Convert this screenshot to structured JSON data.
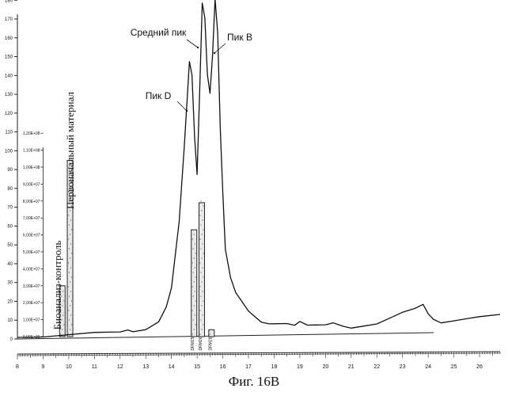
{
  "caption": "Фиг. 16B",
  "chart_data": {
    "type": "line",
    "title": "",
    "xlabel": "",
    "ylabel": "",
    "xlim": [
      8,
      26.8
    ],
    "ylim": [
      0,
      170
    ],
    "x_ticks": [
      "8",
      "9",
      "10",
      "11",
      "12",
      "13",
      "14",
      "15",
      "16",
      "17",
      "18",
      "19",
      "20",
      "21",
      "22",
      "23",
      "24",
      "25",
      "26"
    ],
    "y_ticks": [
      "0",
      "10",
      "20",
      "30",
      "40",
      "50",
      "60",
      "70",
      "80",
      "90",
      "100",
      "110",
      "120",
      "130",
      "140",
      "150",
      "160",
      "170",
      "180"
    ],
    "series": [
      {
        "name": "",
        "x": [
          8.0,
          9.0,
          10.0,
          11.0,
          11.5,
          12.0,
          12.3,
          12.5,
          13.0,
          13.5,
          13.8,
          14.0,
          14.3,
          14.5,
          14.7,
          14.8,
          14.9,
          15.0,
          15.1,
          15.2,
          15.3,
          15.4,
          15.5,
          15.6,
          15.7,
          15.8,
          15.9,
          16.0,
          16.1,
          16.3,
          16.5,
          17.0,
          17.5,
          17.8,
          18.0,
          18.5,
          18.8,
          19.0,
          19.3,
          19.6,
          20.0,
          20.3,
          20.7,
          21.0,
          21.5,
          22.0,
          22.5,
          23.0,
          23.5,
          23.8,
          24.0,
          24.2,
          24.5,
          25.0,
          25.5,
          26.0,
          26.8
        ],
        "y": [
          0,
          0,
          1,
          2,
          2,
          2,
          3,
          2,
          3,
          7,
          15,
          25,
          60,
          100,
          145,
          138,
          105,
          85,
          130,
          176,
          168,
          138,
          128,
          148,
          178,
          160,
          110,
          75,
          45,
          30,
          22,
          12,
          6,
          5,
          5,
          5,
          4,
          6,
          4,
          4,
          4,
          5,
          3,
          2,
          3,
          4,
          7,
          10,
          12,
          14,
          9,
          6,
          4,
          5,
          6,
          7,
          8
        ]
      }
    ],
    "bars": [
      {
        "x": 9.75,
        "value": 30000000
      },
      {
        "x": 10.05,
        "value": 104000000
      },
      {
        "x": 14.88,
        "value": 63000000
      },
      {
        "x": 15.18,
        "value": 79000000
      },
      {
        "x": 15.56,
        "value": 4000000
      }
    ],
    "bar_axis": {
      "range": [
        0,
        200000000
      ],
      "ticks": [
        "0,00E+00",
        "1,00E+07",
        "2,00E+07",
        "3,00E+07",
        "4,00E+07",
        "5,00E+07",
        "6,00E+07",
        "7,00E+07",
        "8,00E+07",
        "9,00E+07",
        "1,00E+08",
        "1,10E+08",
        "1,20E+08"
      ]
    },
    "fraction_labels": [
      "DRM25",
      "DRM26",
      "DRM28"
    ],
    "annotations": [
      {
        "text": "Средний пик",
        "x": 15.15,
        "y": 176
      },
      {
        "text": "Пик B",
        "x": 15.72,
        "y": 178
      },
      {
        "text": "Пик D",
        "x": 14.7,
        "y": 145
      }
    ],
    "vertical_labels": [
      "Биоанализ-контроль",
      "Первоначальный материал"
    ],
    "grid": false,
    "legend": "none"
  }
}
